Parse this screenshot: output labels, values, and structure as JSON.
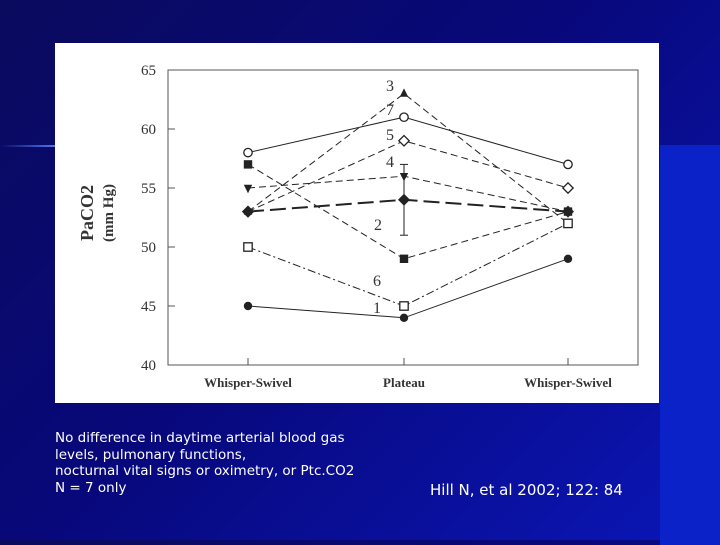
{
  "colors": {
    "background": "#08087a",
    "text": "#ffffff",
    "chart_ink": "#222222"
  },
  "caption": {
    "lines": [
      "No difference in daytime arterial blood gas",
      "levels, pulmonary functions,",
      "nocturnal vital signs or oximetry, or Ptc.CO2",
      "N = 7 only"
    ]
  },
  "citation": "Hill N, et al 2002; 122: 84",
  "chart_data": {
    "type": "line",
    "title": "",
    "xlabel": "",
    "ylabel": "PaCO2",
    "ylabel_unit": "(mm Hg)",
    "ylim": [
      40,
      65
    ],
    "yticks": [
      40,
      45,
      50,
      55,
      60,
      65
    ],
    "categories": [
      "Whisper-Swivel",
      "Plateau",
      "Whisper-Swivel"
    ],
    "grid": false,
    "legend": "none",
    "series": [
      {
        "name": "1",
        "marker": "filled-circle",
        "dash": "solid",
        "values": [
          45,
          44,
          49
        ]
      },
      {
        "name": "2",
        "marker": "filled-square",
        "dash": "dashed",
        "values": [
          57,
          49,
          53
        ]
      },
      {
        "name": "3",
        "marker": "filled-triangle",
        "dash": "dashed",
        "values": [
          53,
          63,
          52
        ]
      },
      {
        "name": "4",
        "marker": "filled-triangle-down",
        "dash": "dashed",
        "values": [
          55,
          56,
          53
        ]
      },
      {
        "name": "5",
        "marker": "open-diamond",
        "dash": "dashed",
        "values": [
          53,
          59,
          55
        ]
      },
      {
        "name": "6",
        "marker": "open-square",
        "dash": "dashdot",
        "values": [
          50,
          45,
          52
        ]
      },
      {
        "name": "7",
        "marker": "open-circle",
        "dash": "solid",
        "values": [
          58,
          61,
          57
        ]
      },
      {
        "name": "",
        "marker": "filled-diamond-large",
        "dash": "longdash",
        "values": [
          53,
          54,
          53
        ],
        "error": [
          0,
          3,
          0
        ]
      }
    ],
    "series_labels": [
      "3",
      "7",
      "5",
      "4",
      "2",
      "6",
      "1"
    ]
  }
}
